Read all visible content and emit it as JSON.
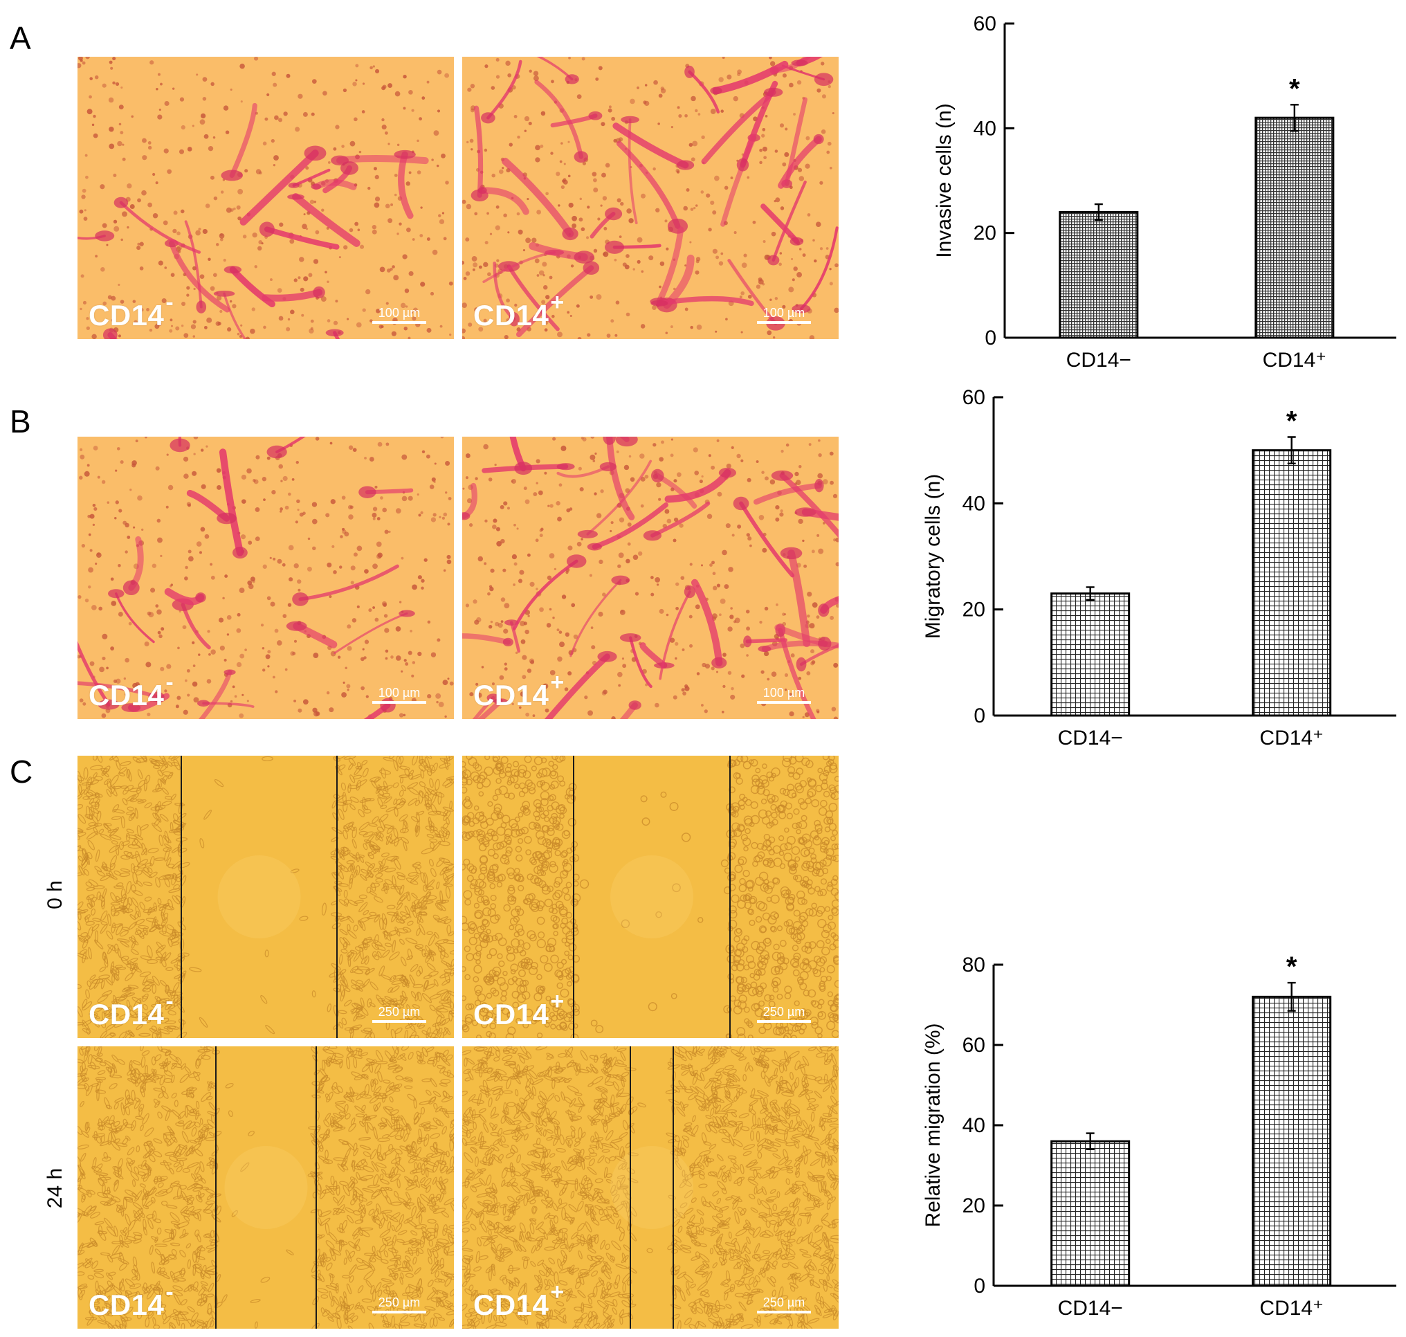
{
  "panel_letters": [
    "A",
    "B",
    "C"
  ],
  "images": {
    "cd14_neg": "CD14",
    "cd14_pos": "CD14",
    "sup_neg": "-",
    "sup_pos": "+",
    "scale_100": "100 µm",
    "scale_250": "250 µm"
  },
  "time_labels": [
    "0 h",
    "24 h"
  ],
  "colors": {
    "invasion_bg": "#fbc46e",
    "invasion_stain": "#e43a6c",
    "wound_bg": "#f4bd45",
    "wound_cells": "#c98a2a",
    "bar_fill_dense": "#5a5a5a",
    "bar_fill_grid": "#ffffff"
  },
  "chart_data": [
    {
      "type": "bar",
      "categories": [
        "CD14−",
        "CD14⁺"
      ],
      "values": [
        24,
        42
      ],
      "errors": [
        1.5,
        2.5
      ],
      "significance": [
        "",
        "*"
      ],
      "ylabel": "Invasive cells (n)",
      "ylim": [
        0,
        60
      ],
      "yticks": [
        0,
        20,
        40,
        60
      ],
      "pattern": "dense"
    },
    {
      "type": "bar",
      "categories": [
        "CD14−",
        "CD14⁺"
      ],
      "values": [
        23,
        50
      ],
      "errors": [
        1.2,
        2.5
      ],
      "significance": [
        "",
        "*"
      ],
      "ylabel": "Migratory cells (n)",
      "ylim": [
        0,
        60
      ],
      "yticks": [
        0,
        20,
        40,
        60
      ],
      "pattern": "grid"
    },
    {
      "type": "bar",
      "categories": [
        "CD14−",
        "CD14⁺"
      ],
      "values": [
        36,
        72
      ],
      "errors": [
        2,
        3.5
      ],
      "significance": [
        "",
        "*"
      ],
      "ylabel": "Relative migration (%)",
      "ylim": [
        0,
        80
      ],
      "yticks": [
        0,
        20,
        40,
        60,
        80
      ],
      "pattern": "grid"
    }
  ]
}
